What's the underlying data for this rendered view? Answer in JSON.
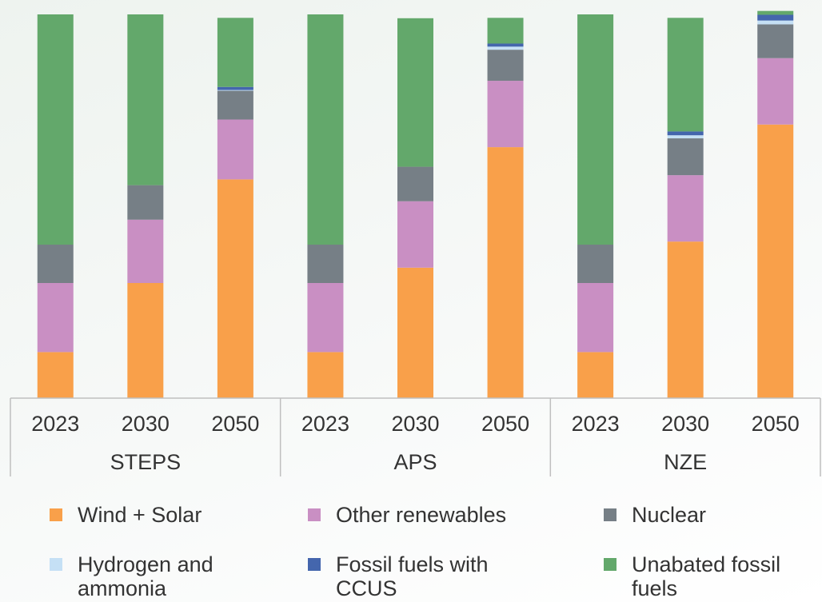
{
  "chart_data": {
    "type": "stacked-bar",
    "categories": [
      "2023",
      "2030",
      "2050",
      "2023",
      "2030",
      "2050",
      "2023",
      "2030",
      "2050"
    ],
    "groups": [
      "STEPS",
      "APS",
      "NZE"
    ],
    "ylim": [
      0,
      100
    ],
    "series": [
      {
        "name": "Wind + Solar",
        "color": "#f9a04a",
        "values": [
          12,
          30,
          57,
          12,
          34,
          65.4,
          12,
          40.8,
          71.3
        ]
      },
      {
        "name": "Other renewables",
        "color": "#c98fc3",
        "values": [
          18,
          16.5,
          15.6,
          18,
          17.3,
          17.3,
          18,
          17.3,
          17.3
        ]
      },
      {
        "name": "Nuclear",
        "color": "#767f86",
        "values": [
          10,
          9,
          7.5,
          10,
          9,
          8.1,
          10,
          9.6,
          8.8
        ]
      },
      {
        "name": "Hydrogen and ammonia",
        "color": "#c5e0f5",
        "values": [
          0,
          0,
          0.2,
          0,
          0,
          0.8,
          0,
          0.8,
          1
        ]
      },
      {
        "name": "Fossil fuels with CCUS",
        "color": "#4466ad",
        "values": [
          0,
          0,
          0.8,
          0,
          0,
          0.8,
          0,
          1,
          1.5
        ]
      },
      {
        "name": "Unabated fossil fuels",
        "color": "#63a86b",
        "values": [
          60,
          44.5,
          18,
          60,
          38.7,
          6.7,
          60,
          29.6,
          1
        ]
      }
    ]
  }
}
